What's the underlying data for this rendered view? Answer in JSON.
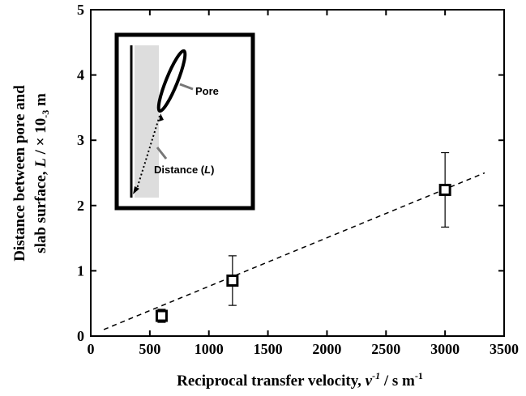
{
  "chart_data": {
    "type": "scatter",
    "x_label": [
      "Reciprocal transfer velocity, ",
      "v",
      "-1",
      " / s m",
      "-1"
    ],
    "y_label": [
      [
        "Distance between pore and"
      ],
      [
        "slab surface, ",
        "L",
        " / × 10",
        "-3",
        " m"
      ]
    ],
    "x": [
      600,
      1200,
      3000
    ],
    "values": [
      0.31,
      0.85,
      2.24
    ],
    "errors": [
      0.1,
      0.38,
      0.57
    ],
    "color": "#000000",
    "fit_line": {
      "x": [
        110,
        3335
      ],
      "y": [
        0.1,
        2.5
      ]
    },
    "xlim": [
      0,
      3500
    ],
    "xticks": [
      0,
      500,
      1000,
      1500,
      2000,
      2500,
      3000,
      3500
    ],
    "ylim": [
      0,
      5
    ],
    "yticks": [
      0,
      1,
      2,
      3,
      4,
      5
    ]
  },
  "inset": {
    "labels": {
      "pore": "Pore",
      "distance": [
        "Distance (",
        "L",
        ")"
      ]
    }
  }
}
